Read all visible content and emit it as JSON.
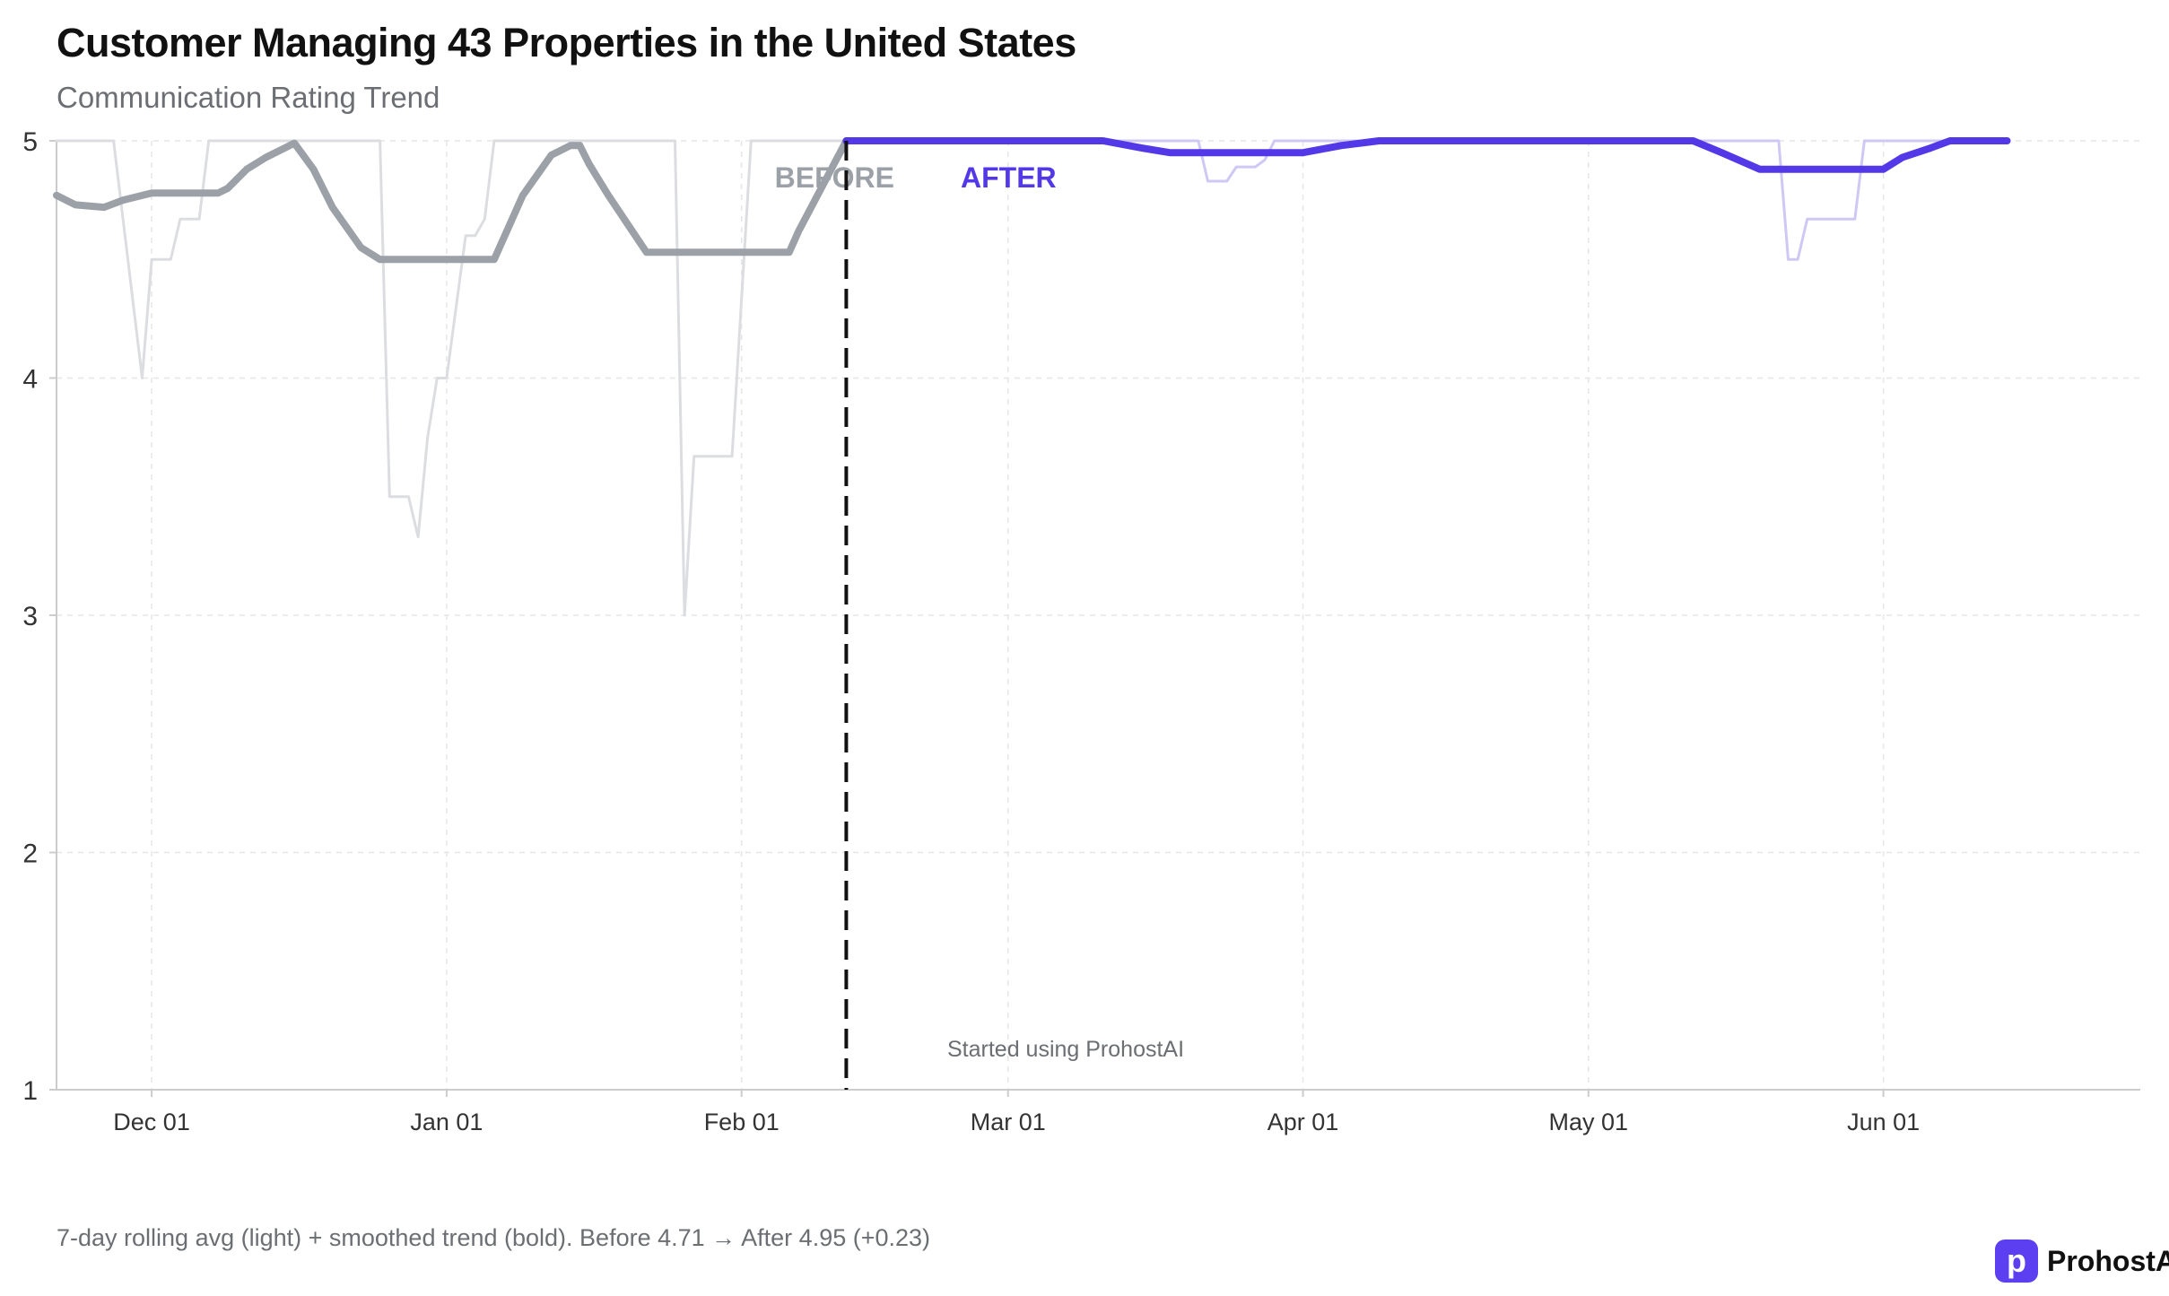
{
  "header": {
    "title": "Customer Managing 43 Properties in the United States",
    "subtitle": "Communication Rating Trend"
  },
  "footer": {
    "note": "7-day rolling avg (light) + smoothed trend (bold).   Before 4.71  →  After 4.95   (+0.23)"
  },
  "brand": {
    "mark": "p",
    "name": "ProhostAI",
    "color": "#5b3ff0"
  },
  "chart_data": {
    "type": "line",
    "title": "Communication Rating Trend",
    "xlabel": "",
    "ylabel": "",
    "x_type": "date",
    "xlim": [
      "2024-11-21",
      "2025-06-28"
    ],
    "ylim": [
      1,
      5
    ],
    "yticks": [
      1,
      2,
      3,
      4,
      5
    ],
    "xticks": [
      {
        "date": "2024-12-01",
        "label": "Dec 01"
      },
      {
        "date": "2025-01-01",
        "label": "Jan 01"
      },
      {
        "date": "2025-02-01",
        "label": "Feb 01"
      },
      {
        "date": "2025-03-01",
        "label": "Mar 01"
      },
      {
        "date": "2025-04-01",
        "label": "Apr 01"
      },
      {
        "date": "2025-05-01",
        "label": "May 01"
      },
      {
        "date": "2025-06-01",
        "label": "Jun 01"
      }
    ],
    "grid": true,
    "colors": {
      "before": "#9ca1a8",
      "after": "#5338e8",
      "before_light": "#dcdde0",
      "after_light": "#cfc8f4",
      "cutover": "#111111",
      "grid": "#e6e6e6",
      "axis": "#cccccc",
      "tick_label": "#333333"
    },
    "cutover": {
      "date": "2025-02-12",
      "label": "Started using ProhostAI"
    },
    "phase_labels": {
      "before": "BEFORE",
      "after": "AFTER"
    },
    "summary": {
      "before_avg": 4.71,
      "after_avg": 4.95,
      "change": 0.23
    },
    "series": [
      {
        "phase": "before",
        "style": "rolling",
        "points": [
          [
            "2024-11-21",
            5
          ],
          [
            "2024-11-27",
            5
          ],
          [
            "2024-11-30",
            4.0
          ],
          [
            "2024-12-01",
            4.5
          ],
          [
            "2024-12-03",
            4.5
          ],
          [
            "2024-12-04",
            4.67
          ],
          [
            "2024-12-06",
            4.67
          ],
          [
            "2024-12-07",
            5
          ],
          [
            "2024-12-25",
            5
          ],
          [
            "2024-12-26",
            3.5
          ],
          [
            "2024-12-28",
            3.5
          ],
          [
            "2024-12-29",
            3.33
          ],
          [
            "2024-12-30",
            3.75
          ],
          [
            "2024-12-31",
            4.0
          ],
          [
            "2025-01-01",
            4.0
          ],
          [
            "2025-01-03",
            4.6
          ],
          [
            "2025-01-04",
            4.6
          ],
          [
            "2025-01-05",
            4.67
          ],
          [
            "2025-01-06",
            5
          ],
          [
            "2025-01-25",
            5
          ],
          [
            "2025-01-26",
            3.0
          ],
          [
            "2025-01-27",
            3.67
          ],
          [
            "2025-01-31",
            3.67
          ],
          [
            "2025-02-02",
            5
          ],
          [
            "2025-02-12",
            5
          ]
        ]
      },
      {
        "phase": "before",
        "style": "trend",
        "points": [
          [
            "2024-11-21",
            4.77
          ],
          [
            "2024-11-23",
            4.73
          ],
          [
            "2024-11-26",
            4.72
          ],
          [
            "2024-11-28",
            4.75
          ],
          [
            "2024-12-01",
            4.78
          ],
          [
            "2024-12-08",
            4.78
          ],
          [
            "2024-12-09",
            4.8
          ],
          [
            "2024-12-11",
            4.88
          ],
          [
            "2024-12-13",
            4.93
          ],
          [
            "2024-12-15",
            4.97
          ],
          [
            "2024-12-16",
            4.99
          ],
          [
            "2024-12-18",
            4.88
          ],
          [
            "2024-12-20",
            4.72
          ],
          [
            "2024-12-23",
            4.55
          ],
          [
            "2024-12-25",
            4.5
          ],
          [
            "2025-01-06",
            4.5
          ],
          [
            "2025-01-09",
            4.77
          ],
          [
            "2025-01-12",
            4.94
          ],
          [
            "2025-01-14",
            4.98
          ],
          [
            "2025-01-15",
            4.98
          ],
          [
            "2025-01-16",
            4.9
          ],
          [
            "2025-01-18",
            4.77
          ],
          [
            "2025-01-22",
            4.53
          ],
          [
            "2025-02-06",
            4.53
          ],
          [
            "2025-02-07",
            4.62
          ],
          [
            "2025-02-12",
            5.0
          ]
        ]
      },
      {
        "phase": "after",
        "style": "rolling",
        "points": [
          [
            "2025-02-12",
            5
          ],
          [
            "2025-03-21",
            5
          ],
          [
            "2025-03-22",
            4.83
          ],
          [
            "2025-03-24",
            4.83
          ],
          [
            "2025-03-25",
            4.89
          ],
          [
            "2025-03-27",
            4.89
          ],
          [
            "2025-03-28",
            4.92
          ],
          [
            "2025-03-29",
            5
          ],
          [
            "2025-05-21",
            5
          ],
          [
            "2025-05-22",
            4.5
          ],
          [
            "2025-05-23",
            4.5
          ],
          [
            "2025-05-24",
            4.67
          ],
          [
            "2025-05-29",
            4.67
          ],
          [
            "2025-05-30",
            5
          ],
          [
            "2025-06-14",
            5
          ]
        ]
      },
      {
        "phase": "after",
        "style": "trend",
        "points": [
          [
            "2025-02-12",
            5.0
          ],
          [
            "2025-03-11",
            5.0
          ],
          [
            "2025-03-15",
            4.97
          ],
          [
            "2025-03-18",
            4.95
          ],
          [
            "2025-04-01",
            4.95
          ],
          [
            "2025-04-05",
            4.98
          ],
          [
            "2025-04-09",
            5.0
          ],
          [
            "2025-05-12",
            5.0
          ],
          [
            "2025-05-15",
            4.95
          ],
          [
            "2025-05-19",
            4.88
          ],
          [
            "2025-06-01",
            4.88
          ],
          [
            "2025-06-03",
            4.93
          ],
          [
            "2025-06-06",
            4.97
          ],
          [
            "2025-06-08",
            5.0
          ],
          [
            "2025-06-14",
            5.0
          ]
        ]
      }
    ]
  }
}
